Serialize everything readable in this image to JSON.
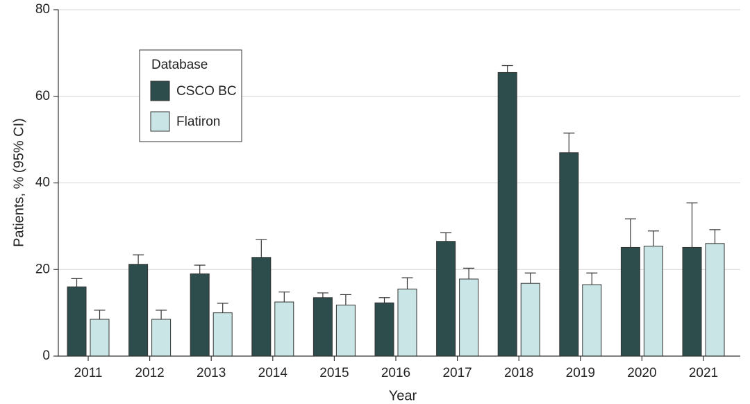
{
  "chart_data": {
    "type": "bar",
    "xlabel": "Year",
    "ylabel": "Patients, % (95% CI)",
    "ylim": [
      0,
      80
    ],
    "yticks": [
      0,
      20,
      40,
      60,
      80
    ],
    "grid": "horizontal",
    "categories": [
      "2011",
      "2012",
      "2013",
      "2014",
      "2015",
      "2016",
      "2017",
      "2018",
      "2019",
      "2020",
      "2021"
    ],
    "legend": {
      "title": "Database",
      "placement": "top-left"
    },
    "series": [
      {
        "name": "CSCO BC",
        "color": "#2d4d4c",
        "values": [
          16.0,
          21.2,
          19.0,
          22.8,
          13.5,
          12.3,
          26.5,
          65.5,
          47.0,
          25.1,
          25.1
        ],
        "ci_upper": [
          17.9,
          23.4,
          21.0,
          26.9,
          14.6,
          13.5,
          28.5,
          67.1,
          51.5,
          31.7,
          35.4
        ]
      },
      {
        "name": "Flatiron",
        "color": "#c9e5e5",
        "values": [
          8.5,
          8.5,
          10.0,
          12.5,
          11.8,
          15.5,
          17.8,
          16.8,
          16.5,
          25.4,
          26.0
        ],
        "ci_upper": [
          10.6,
          10.6,
          12.2,
          14.8,
          14.2,
          18.1,
          20.3,
          19.2,
          19.2,
          28.9,
          29.2
        ]
      }
    ]
  }
}
